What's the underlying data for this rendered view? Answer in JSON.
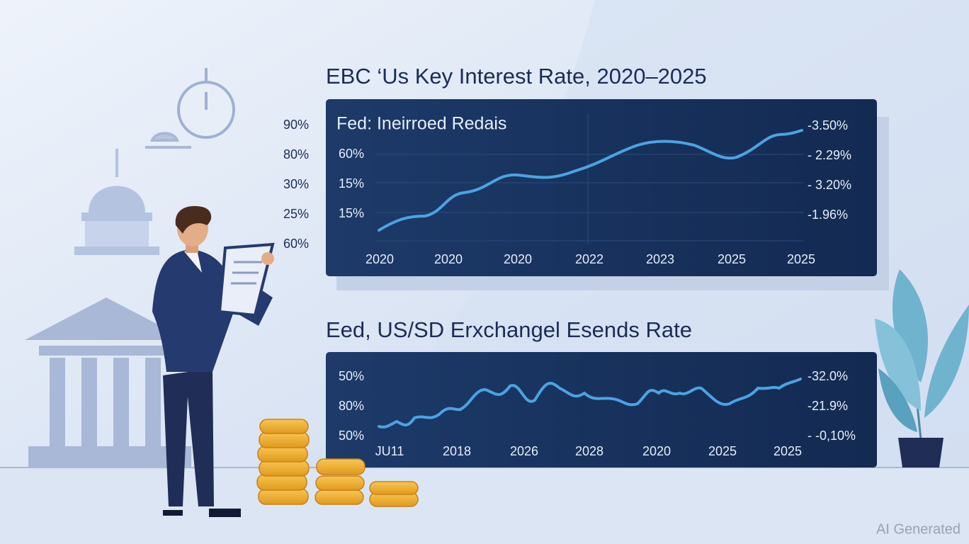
{
  "charts": [
    {
      "title": "EBC ‘Us Key Interest Rate, 2020–2025",
      "panel_label": "Fed: Ineirroed Redais",
      "left_labels": [
        "90%",
        "80%",
        "30%",
        "25%",
        "60%"
      ],
      "inner_labels": [
        "60%",
        "15%",
        "15%"
      ],
      "right_labels": [
        "-3.50%",
        "- 2.29%",
        "- 3.20%",
        "-1.96%"
      ],
      "x_labels": [
        "2020",
        "2020",
        "2020",
        "2022",
        "2023",
        "2025",
        "2025"
      ]
    },
    {
      "title": "Eed, US/SD Erxchangel Esends Rate",
      "left_labels": [
        "50%",
        "80%",
        "50%"
      ],
      "right_labels": [
        "-32.0%",
        "-21.9%",
        "- -0,10%"
      ],
      "x_labels": [
        "JU11",
        "2018",
        "2026",
        "2028",
        "2020",
        "2025",
        "2025"
      ]
    }
  ],
  "watermark": "AI Generated"
}
